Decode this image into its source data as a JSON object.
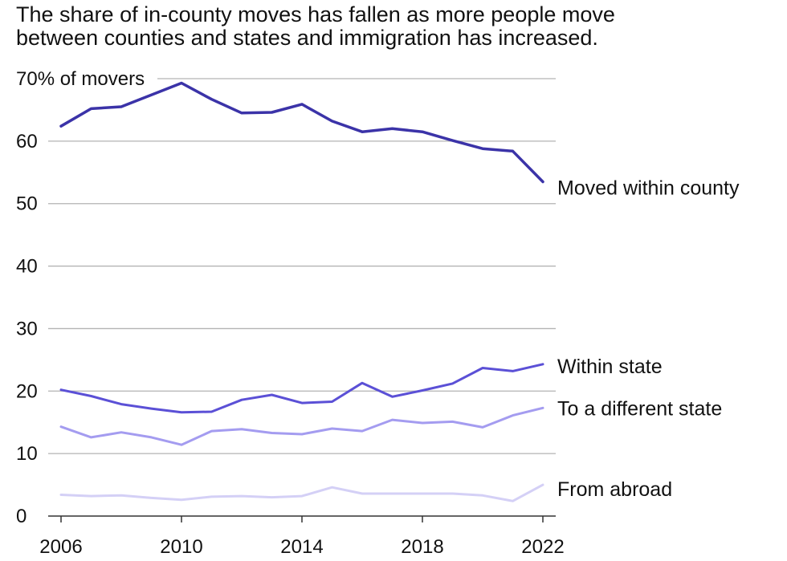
{
  "title_lines": [
    "The share of in-county moves has fallen as more people move",
    "between counties and states and immigration has increased."
  ],
  "chart_data": {
    "type": "line",
    "title": "The share of in-county moves has fallen as more people move between counties and states and immigration has increased.",
    "xlabel": "",
    "ylabel": "% of movers",
    "ylim": [
      0,
      70
    ],
    "xlim": [
      2006,
      2022
    ],
    "y_ticks": [
      {
        "value": 0,
        "label": "0"
      },
      {
        "value": 10,
        "label": "10"
      },
      {
        "value": 20,
        "label": "20"
      },
      {
        "value": 30,
        "label": "30"
      },
      {
        "value": 40,
        "label": "40"
      },
      {
        "value": 50,
        "label": "50"
      },
      {
        "value": 60,
        "label": "60"
      },
      {
        "value": 70,
        "label": "70% of movers"
      }
    ],
    "x_ticks": [
      {
        "value": 2006,
        "label": "2006"
      },
      {
        "value": 2010,
        "label": "2010"
      },
      {
        "value": 2014,
        "label": "2014"
      },
      {
        "value": 2018,
        "label": "2018"
      },
      {
        "value": 2022,
        "label": "2022"
      }
    ],
    "x": [
      2006,
      2007,
      2008,
      2009,
      2010,
      2011,
      2012,
      2013,
      2014,
      2015,
      2016,
      2017,
      2018,
      2019,
      2020,
      2021,
      2022
    ],
    "series": [
      {
        "name": "Moved within county",
        "color": "#3b33a8",
        "width": 3.5,
        "values": [
          62.4,
          65.2,
          65.5,
          67.4,
          69.3,
          66.7,
          64.5,
          64.6,
          65.9,
          63.2,
          61.5,
          62.0,
          61.5,
          60.1,
          58.8,
          58.4,
          53.5
        ]
      },
      {
        "name": "Within state",
        "color": "#5b50d6",
        "width": 3,
        "values": [
          20.2,
          19.2,
          17.9,
          17.2,
          16.6,
          16.7,
          18.6,
          19.4,
          18.1,
          18.3,
          21.3,
          19.1,
          20.1,
          21.2,
          23.7,
          23.2,
          24.3
        ]
      },
      {
        "name": "To a different state",
        "color": "#a49cf0",
        "width": 3,
        "values": [
          14.3,
          12.6,
          13.4,
          12.6,
          11.4,
          13.6,
          13.9,
          13.3,
          13.1,
          14.0,
          13.6,
          15.4,
          14.9,
          15.1,
          14.2,
          16.1,
          17.3
        ]
      },
      {
        "name": "From abroad",
        "color": "#d4d0f6",
        "width": 3,
        "values": [
          3.4,
          3.2,
          3.3,
          2.9,
          2.6,
          3.1,
          3.2,
          3.0,
          3.2,
          4.6,
          3.6,
          3.6,
          3.6,
          3.6,
          3.3,
          2.4,
          5.0
        ]
      }
    ]
  }
}
